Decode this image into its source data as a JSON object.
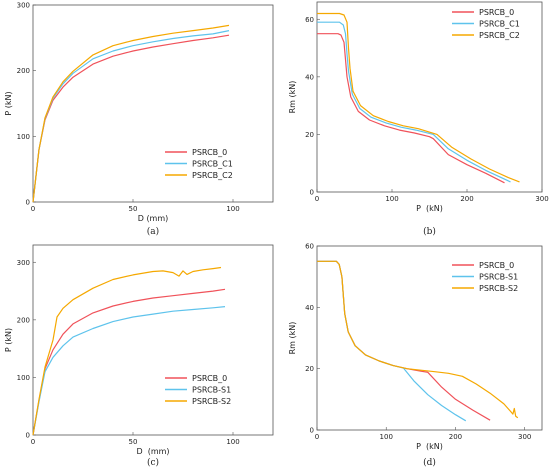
{
  "colors": {
    "red": "#f0525a",
    "blue": "#5ec3ec",
    "orange": "#f5a800"
  },
  "chart_data": [
    {
      "type": "line",
      "caption": "(a)",
      "xlabel": "D (mm)",
      "ylabel": "P (kN)",
      "xlim": [
        0,
        120
      ],
      "ylim": [
        0,
        300
      ],
      "xticks": [
        0,
        50,
        100
      ],
      "yticks": [
        0,
        100,
        200,
        300
      ],
      "grid": false,
      "legend": "bottom-right",
      "series": [
        {
          "name": "PSRCB_0",
          "color": "red",
          "x": [
            0,
            3,
            6,
            10,
            15,
            20,
            30,
            40,
            50,
            60,
            70,
            80,
            90,
            98
          ],
          "y": [
            0,
            80,
            125,
            155,
            175,
            190,
            210,
            222,
            230,
            236,
            241,
            246,
            250,
            254
          ]
        },
        {
          "name": "PSRCB_C1",
          "color": "blue",
          "x": [
            0,
            3,
            6,
            10,
            15,
            20,
            30,
            40,
            50,
            60,
            70,
            80,
            90,
            98
          ],
          "y": [
            0,
            80,
            127,
            158,
            180,
            196,
            218,
            230,
            238,
            244,
            249,
            253,
            256,
            261
          ]
        },
        {
          "name": "PSRCB_C2",
          "color": "orange",
          "x": [
            0,
            3,
            6,
            10,
            15,
            20,
            30,
            40,
            50,
            60,
            70,
            80,
            90,
            98
          ],
          "y": [
            0,
            80,
            128,
            160,
            183,
            199,
            224,
            238,
            246,
            252,
            257,
            261,
            265,
            269
          ]
        }
      ]
    },
    {
      "type": "line",
      "caption": "(b)",
      "xlabel": "P  (kN)",
      "ylabel": "Rm (kN)",
      "xlim": [
        0,
        300
      ],
      "ylim": [
        0,
        66
      ],
      "xticks": [
        0,
        100,
        200,
        300
      ],
      "yticks": [
        0,
        20,
        40,
        60
      ],
      "grid": false,
      "legend": "top-right",
      "series": [
        {
          "name": "PSRCB_0",
          "color": "red",
          "x": [
            0,
            20,
            28,
            32,
            36,
            38,
            40,
            45,
            55,
            70,
            90,
            110,
            130,
            150,
            155,
            175,
            200,
            225,
            250
          ],
          "y": [
            55,
            55,
            55,
            54.5,
            52,
            46,
            40,
            33,
            28,
            25,
            23,
            21.5,
            20.5,
            19.2,
            18.5,
            13,
            9.5,
            6.5,
            3.2
          ]
        },
        {
          "name": "PSRCB_C1",
          "color": "blue",
          "x": [
            0,
            20,
            30,
            35,
            38,
            40,
            42,
            47,
            57,
            72,
            92,
            112,
            132,
            155,
            175,
            200,
            225,
            258
          ],
          "y": [
            59,
            59,
            59,
            58,
            55,
            48,
            42,
            34,
            29,
            26,
            24,
            22.5,
            21.5,
            20,
            15,
            11,
            7.5,
            3.5
          ]
        },
        {
          "name": "PSRCB_C2",
          "color": "orange",
          "x": [
            0,
            20,
            30,
            36,
            40,
            42,
            44,
            48,
            58,
            75,
            95,
            115,
            135,
            160,
            180,
            205,
            230,
            255,
            270
          ],
          "y": [
            62,
            62,
            62,
            61.5,
            59,
            50,
            43,
            35,
            30,
            26.5,
            24.5,
            23,
            22,
            20,
            15.5,
            11.5,
            8,
            5,
            3.5
          ]
        }
      ]
    },
    {
      "type": "line",
      "caption": "(c)",
      "xlabel": "D  (mm)",
      "ylabel": "P (kN)",
      "xlim": [
        0,
        120
      ],
      "ylim": [
        0,
        330
      ],
      "xticks": [
        0,
        50,
        100
      ],
      "yticks": [
        0,
        100,
        200,
        300
      ],
      "grid": false,
      "legend": "bottom-right",
      "series": [
        {
          "name": "PSRCB_0",
          "color": "red",
          "x": [
            0,
            3,
            6,
            10,
            15,
            20,
            30,
            40,
            50,
            60,
            70,
            80,
            90,
            96
          ],
          "y": [
            0,
            60,
            115,
            148,
            175,
            193,
            212,
            224,
            232,
            238,
            242,
            246,
            250,
            253
          ]
        },
        {
          "name": "PSRCB-S1",
          "color": "blue",
          "x": [
            0,
            3,
            6,
            10,
            15,
            20,
            30,
            40,
            50,
            60,
            70,
            80,
            90,
            96
          ],
          "y": [
            0,
            58,
            110,
            135,
            155,
            170,
            185,
            197,
            205,
            210,
            215,
            218,
            221,
            223
          ]
        },
        {
          "name": "PSRCB-S2",
          "color": "orange",
          "x": [
            0,
            3,
            6,
            10,
            12,
            15,
            20,
            30,
            40,
            50,
            60,
            65,
            70,
            73,
            75,
            77,
            80,
            85,
            90,
            94
          ],
          "y": [
            0,
            62,
            118,
            165,
            205,
            220,
            235,
            255,
            270,
            278,
            284,
            285,
            282,
            276,
            285,
            279,
            284,
            287,
            289,
            291
          ]
        }
      ]
    },
    {
      "type": "line",
      "caption": "(d)",
      "xlabel": "P  (kN)",
      "ylabel": "Rm (kN)",
      "xlim": [
        0,
        325
      ],
      "ylim": [
        0,
        60
      ],
      "xticks": [
        0,
        100,
        200,
        300
      ],
      "yticks": [
        0,
        20,
        40,
        60
      ],
      "grid": false,
      "legend": "top-right",
      "series": [
        {
          "name": "PSRCB_0",
          "color": "red",
          "x": [
            0,
            20,
            28,
            32,
            36,
            38,
            40,
            45,
            55,
            70,
            90,
            110,
            130,
            150,
            160,
            180,
            200,
            225,
            250
          ],
          "y": [
            55,
            55,
            55,
            54,
            50,
            44,
            38,
            32,
            27.5,
            24.5,
            22.5,
            21,
            20,
            19.2,
            18.8,
            14,
            10,
            6.5,
            3.2
          ]
        },
        {
          "name": "PSRCB-S1",
          "color": "blue",
          "x": [
            0,
            20,
            28,
            32,
            36,
            38,
            40,
            45,
            55,
            70,
            90,
            110,
            125,
            140,
            160,
            180,
            200,
            215
          ],
          "y": [
            55,
            55,
            55,
            54,
            50,
            44,
            38,
            32,
            27.5,
            24.5,
            22.5,
            21,
            20.2,
            16,
            11.5,
            8,
            5,
            3
          ]
        },
        {
          "name": "PSRCB-S2",
          "color": "orange",
          "x": [
            0,
            20,
            28,
            32,
            36,
            38,
            40,
            45,
            55,
            70,
            90,
            110,
            130,
            150,
            170,
            190,
            210,
            230,
            250,
            270,
            280,
            283,
            285,
            287,
            290
          ],
          "y": [
            55,
            55,
            55,
            54,
            50,
            44,
            38,
            32,
            27.5,
            24.5,
            22.5,
            21,
            20,
            19.5,
            19,
            18.5,
            17.5,
            15,
            12,
            8.5,
            6,
            5.2,
            7,
            4.5,
            4
          ]
        }
      ]
    }
  ]
}
